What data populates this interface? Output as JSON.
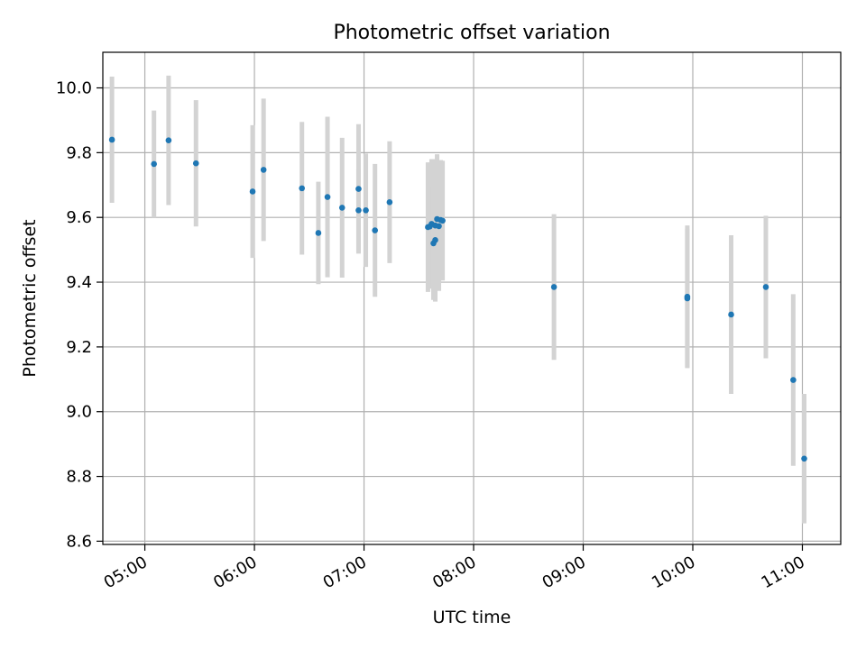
{
  "chart_data": {
    "type": "scatter",
    "title": "Photometric offset variation",
    "xlabel": "UTC time",
    "ylabel": "Photometric offset",
    "x_ticks": [
      "05:00",
      "06:00",
      "07:00",
      "08:00",
      "09:00",
      "10:00",
      "11:00"
    ],
    "y_ticks": [
      "8.6",
      "8.8",
      "9.0",
      "9.2",
      "9.4",
      "9.6",
      "9.8",
      "10.0"
    ],
    "xlim": [
      "04:37",
      "11:21"
    ],
    "ylim": [
      8.59,
      10.11
    ],
    "grid": true,
    "errorbar_color": "#d3d3d3",
    "point_color": "#1f77b4",
    "series": [
      {
        "points": [
          {
            "x": "04:42",
            "y": 9.84,
            "err": 0.195
          },
          {
            "x": "05:05",
            "y": 9.765,
            "err": 0.165
          },
          {
            "x": "05:13",
            "y": 9.838,
            "err": 0.2
          },
          {
            "x": "05:28",
            "y": 9.767,
            "err": 0.195
          },
          {
            "x": "05:59",
            "y": 9.68,
            "err": 0.205
          },
          {
            "x": "06:05",
            "y": 9.747,
            "err": 0.22
          },
          {
            "x": "06:26",
            "y": 9.69,
            "err": 0.205
          },
          {
            "x": "06:35",
            "y": 9.552,
            "err": 0.158
          },
          {
            "x": "06:40",
            "y": 9.663,
            "err": 0.248
          },
          {
            "x": "06:48",
            "y": 9.63,
            "err": 0.216
          },
          {
            "x": "06:57",
            "y": 9.688,
            "err": 0.2
          },
          {
            "x": "06:57",
            "y": 9.622,
            "err": 0.13
          },
          {
            "x": "07:01",
            "y": 9.622,
            "err": 0.175
          },
          {
            "x": "07:06",
            "y": 9.56,
            "err": 0.205
          },
          {
            "x": "07:14",
            "y": 9.647,
            "err": 0.188
          },
          {
            "x": "07:35",
            "y": 9.57,
            "err": 0.2
          },
          {
            "x": "07:36",
            "y": 9.572,
            "err": 0.19
          },
          {
            "x": "07:37",
            "y": 9.58,
            "err": 0.2
          },
          {
            "x": "07:38",
            "y": 9.52,
            "err": 0.175
          },
          {
            "x": "07:39",
            "y": 9.53,
            "err": 0.19
          },
          {
            "x": "07:39",
            "y": 9.575,
            "err": 0.205
          },
          {
            "x": "07:40",
            "y": 9.595,
            "err": 0.2
          },
          {
            "x": "07:41",
            "y": 9.573,
            "err": 0.2
          },
          {
            "x": "07:42",
            "y": 9.592,
            "err": 0.185
          },
          {
            "x": "07:43",
            "y": 9.59,
            "err": 0.185
          },
          {
            "x": "08:44",
            "y": 9.385,
            "err": 0.225
          },
          {
            "x": "09:57",
            "y": 9.35,
            "err": 0.215
          },
          {
            "x": "09:57",
            "y": 9.355,
            "err": 0.22
          },
          {
            "x": "10:21",
            "y": 9.3,
            "err": 0.245
          },
          {
            "x": "10:40",
            "y": 9.385,
            "err": 0.22
          },
          {
            "x": "10:55",
            "y": 9.098,
            "err": 0.265
          },
          {
            "x": "11:01",
            "y": 8.855,
            "err": 0.2
          }
        ]
      }
    ]
  }
}
